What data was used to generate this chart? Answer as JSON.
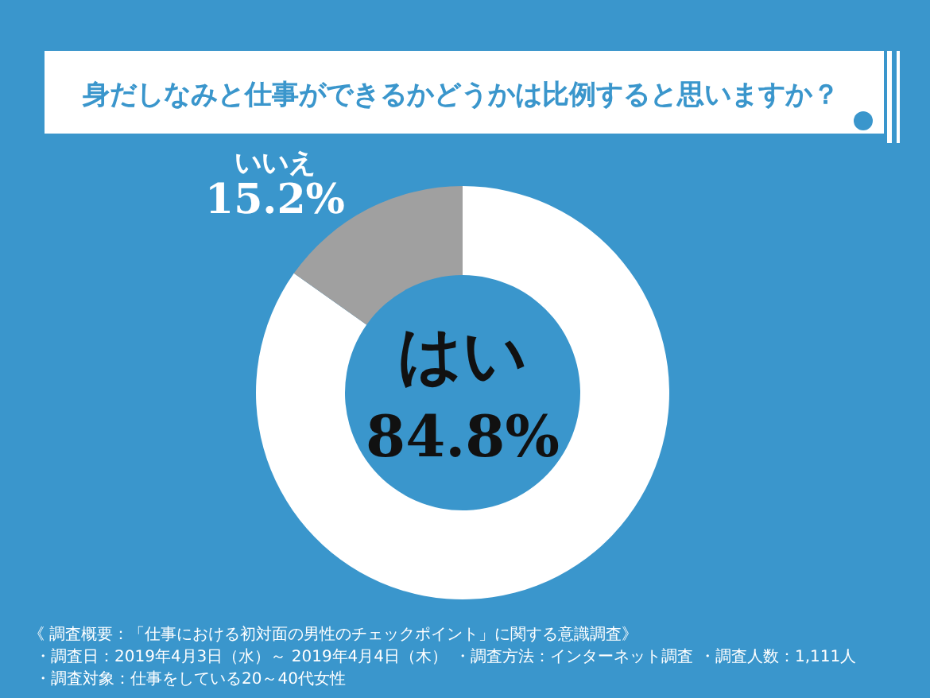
{
  "chart_data": {
    "type": "donut",
    "title": "身だしなみと仕事ができるかどうかは比例すると思いますか？",
    "categories": [
      "はい",
      "いいえ"
    ],
    "values": [
      84.8,
      15.2
    ],
    "colors": [
      "#ffffff",
      "#a0a0a0"
    ],
    "value_labels": [
      "84.8%",
      "15.2%"
    ],
    "annotations": [
      "《 調査概要：「仕事における初対面の男性のチェックポイント」に関する意識調査》",
      "・調査日：2019年4月3日（水）～ 2019年4月4日（木）",
      "・調査方法：インターネット調査",
      "・調査人数：1,111人",
      "・調査対象：仕事をしている20～40代女性"
    ]
  }
}
